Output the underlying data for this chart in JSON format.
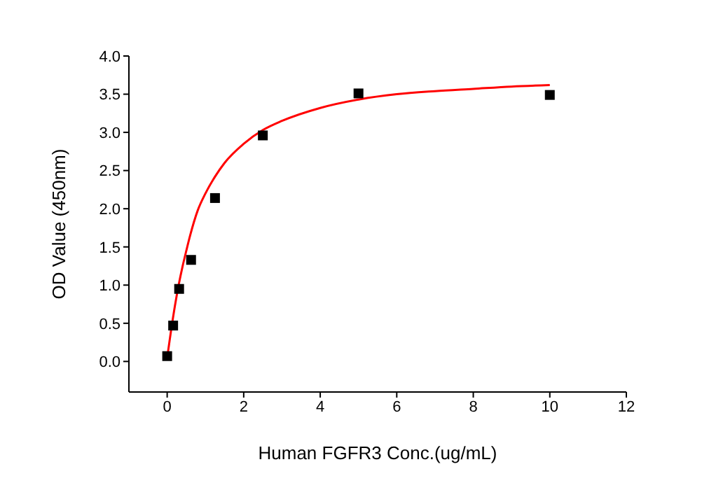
{
  "chart_data": {
    "type": "scatter",
    "xlabel": "Human FGFR3 Conc.(ug/mL)",
    "ylabel": "OD Value (450nm)",
    "xlim": [
      -1,
      12
    ],
    "xticks": [
      0,
      2,
      4,
      6,
      8,
      10,
      12
    ],
    "ylim": [
      -0.4,
      4.0
    ],
    "yticks": [
      {
        "value": 0,
        "label": "0.0"
      },
      0.5,
      {
        "value": 1,
        "label": "1.0"
      },
      1.5,
      {
        "value": 2,
        "label": "2.0"
      },
      2.5,
      {
        "value": 3,
        "label": "3.0"
      },
      3.5,
      {
        "value": 4,
        "label": "4.0"
      }
    ],
    "grid": false,
    "legend": false,
    "marker": "square",
    "series": [
      {
        "color": "#000000",
        "x": [
          0,
          0.156,
          0.3125,
          0.625,
          1.25,
          2.5,
          5,
          10
        ],
        "values": [
          0.07,
          0.47,
          0.95,
          1.33,
          2.14,
          2.96,
          3.51,
          3.49
        ]
      },
      {
        "type": "line",
        "color": "#ff0000",
        "marker": "none",
        "line_style": "solid",
        "x": [
          0,
          0.1,
          0.2,
          0.3,
          0.4,
          0.5,
          0.6,
          0.8,
          1,
          1.25,
          1.5,
          2,
          2.5,
          3,
          4,
          5,
          6,
          7,
          8,
          9,
          10
        ],
        "values": [
          0.05,
          0.4,
          0.72,
          1.0,
          1.24,
          1.45,
          1.65,
          1.98,
          2.2,
          2.42,
          2.6,
          2.85,
          3.03,
          3.15,
          3.32,
          3.43,
          3.5,
          3.54,
          3.57,
          3.6,
          3.62
        ]
      }
    ]
  }
}
